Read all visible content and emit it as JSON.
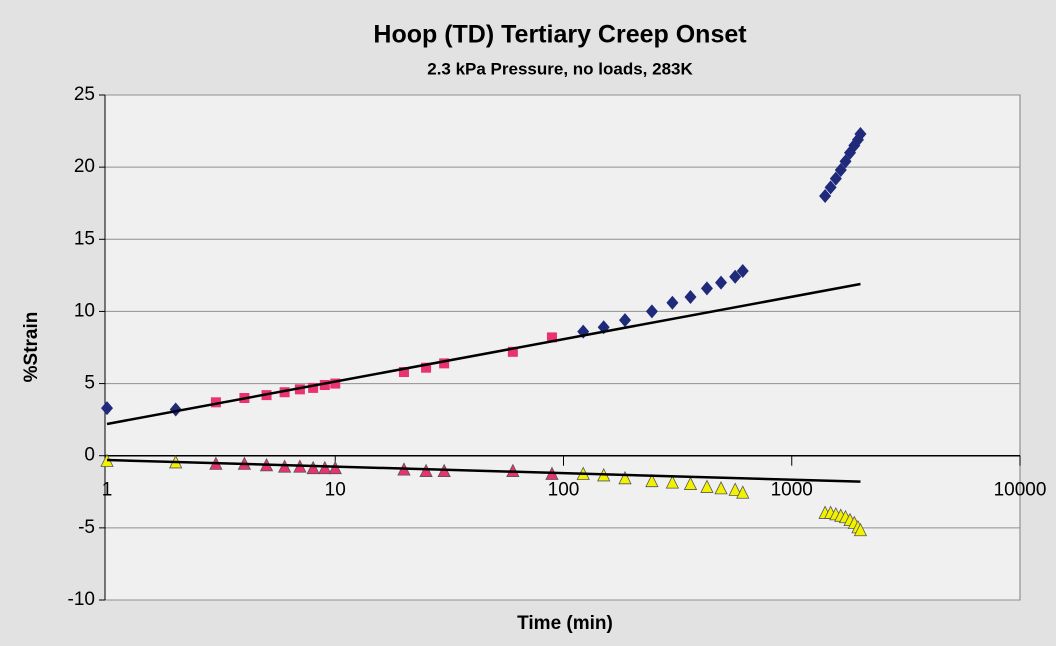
{
  "chart_data": {
    "type": "scatter",
    "title": "Hoop (TD) Tertiary Creep Onset",
    "subtitle": "2.3 kPa Pressure, no loads, 283K",
    "x_label": "Time (min)",
    "y_label": "%Strain",
    "x_scale": "log",
    "xlim": [
      1,
      10000
    ],
    "xticks": [
      1,
      10,
      100,
      1000,
      10000
    ],
    "ylim": [
      -10,
      25
    ],
    "yticks": [
      -10,
      -5,
      0,
      5,
      10,
      15,
      20,
      25
    ],
    "grid": true,
    "series": [
      {
        "color": "#1f2a7a",
        "marker": "diamond",
        "x": [
          1,
          2,
          122,
          150,
          186,
          244,
          300,
          360,
          425,
          490,
          565,
          610,
          1400,
          1480,
          1560,
          1640,
          1720,
          1800,
          1880,
          1950,
          2000
        ],
        "values": [
          3.3,
          3.2,
          8.6,
          8.9,
          9.4,
          10.0,
          10.6,
          11.0,
          11.6,
          12.0,
          12.4,
          12.8,
          18.0,
          18.6,
          19.2,
          19.8,
          20.4,
          21.0,
          21.5,
          21.9,
          22.3
        ]
      },
      {
        "color": "#e8336e",
        "marker": "square",
        "x": [
          3,
          4,
          5,
          6,
          7,
          8,
          9,
          10,
          20,
          25,
          30,
          60,
          89
        ],
        "values": [
          3.7,
          4.0,
          4.2,
          4.4,
          4.6,
          4.7,
          4.9,
          5.0,
          5.8,
          6.1,
          6.4,
          7.2,
          8.2
        ]
      },
      {
        "color": "#f2f200",
        "marker": "triangle",
        "x": [
          1,
          2,
          122,
          150,
          186,
          244,
          300,
          360,
          425,
          490,
          565,
          610,
          1400,
          1480,
          1560,
          1640,
          1720,
          1800,
          1880,
          1950,
          2000
        ],
        "values": [
          -0.4,
          -0.5,
          -1.3,
          -1.4,
          -1.6,
          -1.8,
          -1.9,
          -2.0,
          -2.2,
          -2.3,
          -2.4,
          -2.6,
          -4.0,
          -4.0,
          -4.1,
          -4.2,
          -4.3,
          -4.5,
          -4.7,
          -5.0,
          -5.2
        ]
      },
      {
        "color": "#e8336e",
        "marker": "triangle",
        "x": [
          3,
          4,
          5,
          6,
          7,
          8,
          9,
          10,
          20,
          25,
          30,
          60,
          89
        ],
        "values": [
          -0.6,
          -0.6,
          -0.7,
          -0.8,
          -0.8,
          -0.9,
          -0.9,
          -0.9,
          -1.0,
          -1.1,
          -1.1,
          -1.1,
          -1.3
        ]
      },
      {
        "color": "#000000",
        "marker": "line",
        "x": [
          1,
          2000
        ],
        "values": [
          2.2,
          11.9
        ]
      },
      {
        "color": "#000000",
        "marker": "line",
        "x": [
          1,
          2000
        ],
        "values": [
          -0.3,
          -1.8
        ]
      }
    ]
  }
}
